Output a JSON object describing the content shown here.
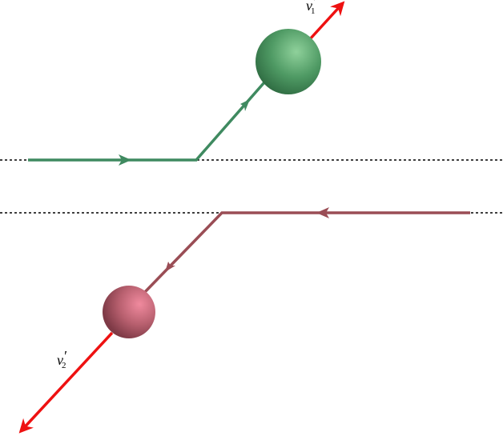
{
  "labels": [
    {
      "base": "v",
      "prime": "′",
      "sub": "1"
    },
    {
      "base": "v",
      "prime": "′",
      "sub": "2"
    }
  ]
}
